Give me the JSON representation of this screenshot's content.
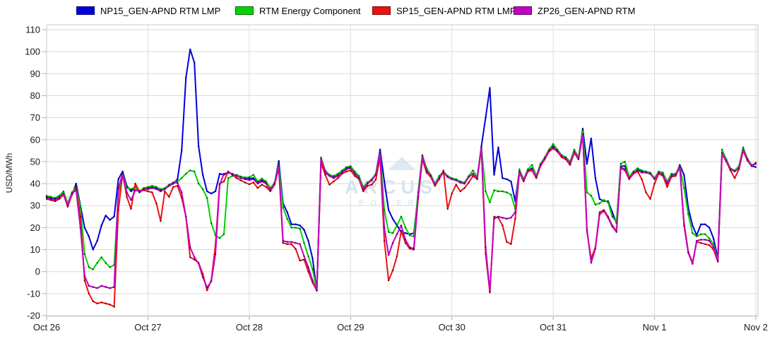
{
  "chart_data": {
    "type": "line",
    "title": "",
    "ylabel": "USD/MWh",
    "ylim": [
      -20,
      110
    ],
    "ystep": 10,
    "x_tick_labels": [
      "Oct 26",
      "Oct 27",
      "Oct 28",
      "Oct 29",
      "Oct 30",
      "Oct 31",
      "Nov 1",
      "Nov 2"
    ],
    "points_per_day": 24,
    "grid": true,
    "legend_position": "top",
    "watermark": {
      "line1": "ARCUS",
      "line2": "POWER",
      "color": "#d7e4ef"
    },
    "series": [
      {
        "name": "NP15_GEN-APND RTM LMP",
        "color": "#0000dd",
        "marker": "#000070",
        "values": [
          34,
          33.5,
          33,
          34,
          36,
          30.5,
          35,
          40,
          30,
          20,
          16,
          10,
          14,
          21,
          25.5,
          23.5,
          25,
          42,
          45.5,
          39,
          36.5,
          38.5,
          36,
          37.5,
          38,
          38.5,
          38,
          37,
          37.5,
          39,
          40,
          42,
          55,
          88,
          101,
          95,
          57,
          44,
          36.5,
          35.5,
          36.5,
          44.5,
          44,
          45,
          44.5,
          43.5,
          43,
          42.5,
          42.3,
          42.5,
          40.7,
          41.5,
          40.5,
          37.5,
          40,
          50.3,
          31,
          27,
          21.5,
          21.5,
          21,
          19,
          14,
          6,
          -8.7,
          50.6,
          45,
          43.5,
          43,
          44,
          45.5,
          47,
          47.5,
          45,
          43,
          37.5,
          40,
          41.5,
          44.5,
          55.5,
          41,
          28,
          24,
          21,
          18,
          17.5,
          17,
          17.5,
          35,
          52,
          46,
          43.5,
          39.5,
          43,
          45,
          43,
          42,
          41.5,
          40.5,
          40,
          43,
          44.5,
          42.5,
          57,
          70,
          83.5,
          44,
          56.5,
          42.5,
          42,
          41,
          32,
          46,
          41.5,
          46,
          47,
          43,
          48.5,
          51.5,
          55,
          57,
          55,
          52.5,
          51.5,
          49.5,
          55,
          51.5,
          65,
          49,
          60.5,
          42.5,
          33,
          32,
          32,
          27,
          22,
          48,
          48,
          42.5,
          45,
          46.5,
          45.5,
          45,
          44.5,
          42,
          45,
          44.5,
          40.5,
          44,
          44,
          48.5,
          44,
          29,
          21,
          16.5,
          21.5,
          21.5,
          20,
          15,
          6,
          54.5,
          50.5,
          46.5,
          45.5,
          47.5,
          55.5,
          51,
          48,
          47.5
        ]
      },
      {
        "name": "RTM Energy Component",
        "color": "#00d400",
        "marker": "#006600",
        "values": [
          34.5,
          34,
          33.5,
          34.5,
          36.5,
          31,
          36,
          38.5,
          29,
          8,
          2,
          1,
          4,
          6.5,
          4,
          2,
          3,
          35,
          44.5,
          38,
          37.5,
          38.5,
          36.5,
          38,
          38.5,
          39,
          38.5,
          37.5,
          38,
          39.5,
          40.5,
          41,
          42.5,
          44.5,
          46,
          45.5,
          40,
          37.5,
          33.5,
          22,
          16.5,
          15.2,
          17,
          42.5,
          43.5,
          44,
          43.2,
          42.8,
          42.9,
          44,
          41,
          42.3,
          41,
          38,
          40.5,
          48.7,
          29,
          24,
          20,
          20,
          19.5,
          13,
          7,
          1,
          -8.5,
          51.9,
          46,
          44,
          43.5,
          44.5,
          46,
          47.5,
          48,
          45.5,
          43.5,
          38.5,
          40.5,
          42,
          44.5,
          54.5,
          28,
          18,
          17.5,
          21,
          25,
          20,
          16.5,
          16,
          36,
          53,
          47,
          44,
          40,
          43.5,
          45.5,
          43.5,
          42.5,
          42,
          41,
          40.5,
          43.5,
          46,
          43,
          56.5,
          36.5,
          31.5,
          37,
          36.5,
          36.5,
          36,
          35,
          28.5,
          46.5,
          42,
          46.5,
          48.5,
          43.5,
          49,
          52,
          55.5,
          58,
          55.5,
          53,
          52,
          50,
          55.5,
          52,
          64,
          36,
          34.5,
          30.5,
          31,
          32.5,
          31.5,
          25,
          22.5,
          49,
          50,
          43,
          45.5,
          47,
          46,
          45.5,
          45,
          42.5,
          45.5,
          45,
          41,
          44.5,
          44.5,
          48,
          38,
          26,
          17.5,
          16,
          17,
          17,
          15,
          12.5,
          5,
          55.5,
          51,
          47,
          46,
          48,
          56.5,
          51.5,
          48.5,
          49
        ]
      },
      {
        "name": "SP15_GEN-APND RTM LMP",
        "color": "#ee1111",
        "marker": "#7a0000",
        "values": [
          33,
          32.5,
          32,
          33,
          35,
          29.5,
          35,
          38,
          25,
          -4,
          -10,
          -13.5,
          -14.5,
          -14,
          -14.5,
          -15,
          -16,
          28,
          44.5,
          34,
          28.5,
          40,
          36.5,
          37,
          36.5,
          36,
          31,
          23,
          36.5,
          34,
          38.5,
          39,
          33.5,
          25,
          6.5,
          5.5,
          4,
          -1,
          -8.5,
          -4,
          12,
          40,
          41,
          45.5,
          44,
          42.5,
          41.5,
          40.5,
          39.7,
          40.5,
          38,
          39.5,
          38.5,
          36.5,
          39.5,
          47,
          13,
          12.5,
          12.5,
          10.3,
          5,
          5.5,
          0,
          -5,
          -8.7,
          49.5,
          44,
          39.5,
          41,
          42.5,
          44.5,
          45.5,
          46,
          43.5,
          42,
          36.5,
          39,
          39.5,
          41.9,
          52,
          14,
          -4,
          0.5,
          7,
          18.5,
          13,
          10.5,
          10,
          33,
          51,
          45,
          43,
          39,
          42,
          46,
          28.5,
          35.5,
          39.5,
          36.5,
          38,
          40.5,
          43.5,
          42,
          56,
          8,
          -9.5,
          25,
          24.5,
          21,
          13.5,
          12.5,
          24,
          45,
          41,
          45.5,
          46,
          42.5,
          48,
          51,
          54.5,
          56,
          54.5,
          52,
          51,
          48.5,
          54,
          51,
          62,
          18,
          6,
          11,
          27,
          28,
          25,
          21,
          18.5,
          47,
          46,
          42,
          44.5,
          45.5,
          42,
          36,
          33,
          40,
          44.5,
          43.5,
          38.5,
          43,
          43.5,
          47.5,
          22,
          9,
          4,
          13.5,
          13,
          12.5,
          12,
          10,
          4.5,
          53.5,
          50,
          46,
          42.5,
          46.5,
          55,
          50.5,
          48,
          49.5
        ]
      },
      {
        "name": "ZP26_GEN-APND RTM",
        "color": "#c400c4",
        "marker": "#5e005e",
        "values": [
          33.5,
          33,
          32.5,
          33.5,
          35.5,
          30,
          35.5,
          37,
          20,
          -2,
          -6.5,
          -7,
          -7.5,
          -6.5,
          -7,
          -7.5,
          -7,
          38,
          44.5,
          36,
          32.5,
          37,
          36.5,
          37.5,
          37.5,
          38,
          37.5,
          36.5,
          37.5,
          39,
          40.5,
          40.3,
          36,
          25,
          11,
          6.5,
          3.8,
          -2.6,
          -7.2,
          -4.5,
          8,
          39.5,
          44.5,
          45,
          44.3,
          43.5,
          42.5,
          42,
          41.6,
          42,
          40,
          41,
          40,
          37,
          40,
          48,
          14,
          13.5,
          13.5,
          13,
          12.5,
          7,
          2,
          -4,
          -8.6,
          51.3,
          45.5,
          43.5,
          42.5,
          43.5,
          45,
          46.5,
          47,
          44.5,
          42.5,
          37.5,
          40,
          41.5,
          44,
          54,
          20,
          7.5,
          13,
          17,
          21,
          14.5,
          11,
          10.5,
          34,
          52.5,
          46,
          43.5,
          39.5,
          42.5,
          45,
          43,
          42,
          41.5,
          40.5,
          40,
          43,
          44.5,
          42.5,
          56.5,
          11,
          -9,
          24,
          25,
          24.5,
          24,
          24.5,
          27,
          45.5,
          41.5,
          46,
          46.5,
          43,
          48.5,
          51.5,
          55,
          56.5,
          55,
          52.5,
          51.5,
          49,
          54.5,
          51.5,
          62.5,
          19,
          4,
          10.5,
          26,
          27.5,
          24.5,
          20.5,
          18,
          47.5,
          46.5,
          42.5,
          45,
          46,
          45,
          45,
          44.5,
          42,
          45,
          44,
          40,
          43.5,
          44,
          47.5,
          21,
          8.5,
          3.5,
          14,
          14.5,
          14.5,
          14,
          11,
          5,
          54,
          50.5,
          46.5,
          45.5,
          47,
          55.5,
          51,
          48,
          49
        ]
      }
    ]
  }
}
